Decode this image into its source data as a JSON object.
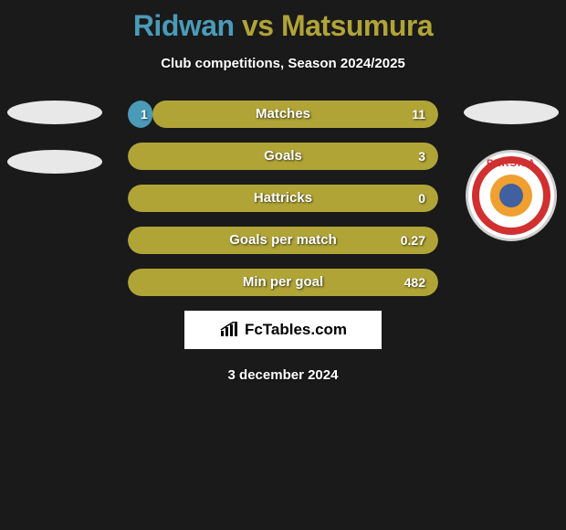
{
  "header": {
    "title_player1": "Ridwan",
    "title_vs": "vs",
    "title_player2": "Matsumura",
    "player1_color": "#4a9bb8",
    "player2_color": "#b0a437",
    "subtitle": "Club competitions, Season 2024/2025"
  },
  "bars": {
    "bar_color_left": "#4a9bb8",
    "bar_color_right": "#b0a437",
    "rows": [
      {
        "label": "Matches",
        "left": "1",
        "right": "11",
        "left_pct": 8,
        "right_pct": 92
      },
      {
        "label": "Goals",
        "left": "",
        "right": "3",
        "left_pct": 0,
        "right_pct": 100
      },
      {
        "label": "Hattricks",
        "left": "",
        "right": "0",
        "left_pct": 0,
        "right_pct": 100
      },
      {
        "label": "Goals per match",
        "left": "",
        "right": "0.27",
        "left_pct": 0,
        "right_pct": 100
      },
      {
        "label": "Min per goal",
        "left": "",
        "right": "482",
        "left_pct": 0,
        "right_pct": 100
      }
    ]
  },
  "brand": {
    "text": "FcTables.com"
  },
  "footer": {
    "date": "3 december 2024"
  },
  "right_badge": {
    "top_text": "PERSIJA"
  }
}
